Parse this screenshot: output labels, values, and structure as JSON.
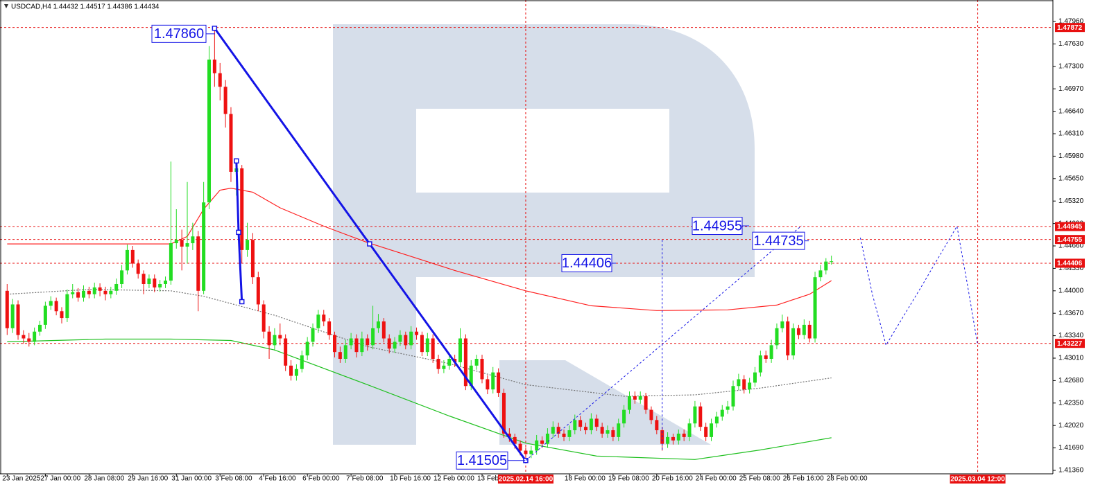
{
  "chart_data": {
    "type": "candlestick",
    "title": "USDCAD,H4 1.44432 1.44517 1.44386 1.44434",
    "up_color": "#22dd22",
    "down_color": "#ee1111",
    "categories": [
      "23 Jan 2025",
      null,
      null,
      null,
      null,
      null,
      null,
      "27 Jan 00:00",
      null,
      null,
      null,
      null,
      null,
      null,
      null,
      "28 Jan 08:00",
      null,
      null,
      null,
      null,
      null,
      null,
      null,
      "29 Jan 16:00",
      null,
      null,
      null,
      null,
      null,
      null,
      null,
      "31 Jan 00:00",
      null,
      null,
      null,
      null,
      null,
      null,
      null,
      "3 Feb 08:00",
      null,
      null,
      null,
      null,
      null,
      null,
      null,
      "4 Feb 16:00",
      null,
      null,
      null,
      null,
      null,
      null,
      null,
      "6 Feb 00:00",
      null,
      null,
      null,
      null,
      null,
      null,
      null,
      "7 Feb 08:00",
      null,
      null,
      null,
      null,
      null,
      null,
      null,
      "10 Feb 16:00",
      null,
      null,
      null,
      null,
      null,
      null,
      null,
      "12 Feb 00:00",
      null,
      null,
      null,
      null,
      null,
      null,
      null,
      "13 Feb 08:00",
      null,
      null,
      null,
      null,
      null,
      null,
      null,
      null,
      null,
      null,
      null,
      null,
      null,
      null,
      null,
      "18 Feb 00:00",
      null,
      null,
      null,
      null,
      null,
      null,
      null,
      "19 Feb 08:00",
      null,
      null,
      null,
      null,
      null,
      null,
      null,
      "20 Feb 16:00",
      null,
      null,
      null,
      null,
      null,
      null,
      null,
      "24 Feb 00:00",
      null,
      null,
      null,
      null,
      null,
      null,
      null,
      "25 Feb 08:00",
      null,
      null,
      null,
      null,
      null,
      null,
      null,
      "26 Feb 16:00",
      null,
      null,
      null,
      null,
      null,
      null,
      null,
      "28 Feb 00:00"
    ],
    "open": [
      1.44,
      1.4345,
      1.438,
      1.4335,
      1.433,
      1.4325,
      1.434,
      1.435,
      1.4378,
      1.4385,
      1.437,
      1.436,
      1.4395,
      1.4398,
      1.439,
      1.44,
      1.4395,
      1.4405,
      1.44,
      1.4395,
      1.44,
      1.441,
      1.443,
      1.446,
      1.444,
      1.4425,
      1.441,
      1.4418,
      1.4405,
      1.441,
      1.4415,
      1.447,
      1.4475,
      1.4465,
      1.447,
      1.448,
      1.44,
      1.453,
      1.474,
      1.472,
      1.47,
      1.466,
      1.4575,
      1.458,
      1.446,
      1.4475,
      1.442,
      1.438,
      1.434,
      1.432,
      1.4335,
      1.433,
      1.429,
      1.4275,
      1.4285,
      1.4305,
      1.4325,
      1.4345,
      1.4365,
      1.4355,
      1.4335,
      1.431,
      1.43,
      1.432,
      1.433,
      1.431,
      1.433,
      1.432,
      1.4345,
      1.4355,
      1.433,
      1.4315,
      1.4325,
      1.4335,
      1.432,
      1.434,
      1.4335,
      1.431,
      1.433,
      1.43,
      1.4285,
      1.429,
      1.43,
      1.4295,
      1.433,
      1.426,
      1.429,
      1.43,
      1.427,
      1.4255,
      1.428,
      1.425,
      1.419,
      1.4185,
      1.4175,
      1.4165,
      1.416,
      1.4165,
      1.418,
      1.4175,
      1.419,
      1.42,
      1.419,
      1.4185,
      1.4195,
      1.421,
      1.42,
      1.4195,
      1.4212,
      1.42,
      1.419,
      1.4195,
      1.4185,
      1.4205,
      1.4225,
      1.4245,
      1.424,
      1.4245,
      1.4225,
      1.421,
      1.4195,
      1.4175,
      1.4185,
      1.418,
      1.419,
      1.4185,
      1.4205,
      1.423,
      1.42,
      1.4185,
      1.4205,
      1.4215,
      1.4225,
      1.423,
      1.426,
      1.427,
      1.4255,
      1.4265,
      1.428,
      1.4305,
      1.43,
      1.432,
      1.4345,
      1.4355,
      1.4305,
      1.4345,
      1.4335,
      1.435,
      1.433,
      1.442,
      1.443,
      1.44432
    ],
    "high": [
      1.441,
      1.4388,
      1.4386,
      1.4342,
      1.4338,
      1.4346,
      1.4356,
      1.4384,
      1.4392,
      1.439,
      1.4376,
      1.4402,
      1.441,
      1.4404,
      1.4408,
      1.4406,
      1.4412,
      1.4411,
      1.4406,
      1.4406,
      1.4418,
      1.4438,
      1.4468,
      1.4466,
      1.4446,
      1.443,
      1.4424,
      1.4424,
      1.4416,
      1.4421,
      1.459,
      1.452,
      1.449,
      1.456,
      1.45,
      1.4488,
      1.456,
      1.476,
      1.4786,
      1.4735,
      1.471,
      1.467,
      1.459,
      1.4585,
      1.45,
      1.4485,
      1.4428,
      1.4386,
      1.4348,
      1.4345,
      1.4352,
      1.4336,
      1.4298,
      1.4292,
      1.4312,
      1.4332,
      1.4352,
      1.4372,
      1.4372,
      1.436,
      1.434,
      1.4318,
      1.4328,
      1.4338,
      1.4336,
      1.434,
      1.4336,
      1.4378,
      1.4366,
      1.436,
      1.4336,
      1.4332,
      1.4342,
      1.434,
      1.4348,
      1.4346,
      1.434,
      1.4338,
      1.4336,
      1.4306,
      1.4298,
      1.4308,
      1.4306,
      1.4345,
      1.4336,
      1.4298,
      1.4306,
      1.4306,
      1.4276,
      1.4288,
      1.4286,
      1.4256,
      1.4198,
      1.419,
      1.418,
      1.417,
      1.4172,
      1.4188,
      1.4186,
      1.4198,
      1.4208,
      1.4206,
      1.4196,
      1.4202,
      1.4218,
      1.4216,
      1.4206,
      1.422,
      1.4218,
      1.4206,
      1.4202,
      1.42,
      1.4212,
      1.4232,
      1.4252,
      1.4252,
      1.4252,
      1.425,
      1.423,
      1.4216,
      1.42,
      1.4192,
      1.419,
      1.4196,
      1.4196,
      1.4212,
      1.4238,
      1.4236,
      1.4206,
      1.4212,
      1.4222,
      1.4232,
      1.4238,
      1.4268,
      1.4278,
      1.4276,
      1.4272,
      1.4288,
      1.4312,
      1.4312,
      1.4328,
      1.4352,
      1.4365,
      1.4362,
      1.4352,
      1.435,
      1.4358,
      1.4356,
      1.4428,
      1.4438,
      1.4448,
      1.44517
    ],
    "low": [
      1.4335,
      1.4338,
      1.4328,
      1.4322,
      1.4318,
      1.432,
      1.4334,
      1.4344,
      1.4372,
      1.4364,
      1.4352,
      1.4354,
      1.4389,
      1.4384,
      1.4384,
      1.4389,
      1.4389,
      1.4392,
      1.4386,
      1.4389,
      1.4394,
      1.4404,
      1.4424,
      1.4434,
      1.4418,
      1.4395,
      1.4404,
      1.4398,
      1.4399,
      1.4404,
      1.4409,
      1.4462,
      1.443,
      1.444,
      1.446,
      1.437,
      1.4395,
      1.452,
      1.47,
      1.468,
      1.464,
      1.456,
      1.454,
      1.444,
      1.445,
      1.441,
      1.437,
      1.433,
      1.43,
      1.4312,
      1.432,
      1.4282,
      1.4268,
      1.4268,
      1.428,
      1.4298,
      1.4318,
      1.4338,
      1.4348,
      1.4328,
      1.4302,
      1.4294,
      1.4294,
      1.4314,
      1.4302,
      1.4304,
      1.4312,
      1.4314,
      1.4338,
      1.4324,
      1.4308,
      1.4309,
      1.4319,
      1.4314,
      1.4314,
      1.4328,
      1.4304,
      1.4304,
      1.4294,
      1.4278,
      1.4279,
      1.4284,
      1.4288,
      1.4289,
      1.4254,
      1.4254,
      1.4284,
      1.4264,
      1.4248,
      1.4249,
      1.4244,
      1.4184,
      1.4178,
      1.4168,
      1.4158,
      1.415,
      1.4154,
      1.4159,
      1.4169,
      1.4169,
      1.4184,
      1.4184,
      1.4179,
      1.4179,
      1.4189,
      1.4194,
      1.4189,
      1.4189,
      1.4194,
      1.4184,
      1.4184,
      1.4179,
      1.4179,
      1.4199,
      1.4219,
      1.4234,
      1.4234,
      1.4219,
      1.4204,
      1.4189,
      1.4165,
      1.4169,
      1.4174,
      1.4174,
      1.4179,
      1.4179,
      1.4199,
      1.4194,
      1.4179,
      1.4179,
      1.4199,
      1.4209,
      1.4219,
      1.4224,
      1.4254,
      1.4249,
      1.4249,
      1.4259,
      1.4274,
      1.4294,
      1.4294,
      1.4314,
      1.4339,
      1.4298,
      1.4299,
      1.4329,
      1.4329,
      1.4324,
      1.4324,
      1.4414,
      1.4424,
      1.44386
    ],
    "close": [
      1.4345,
      1.438,
      1.4335,
      1.433,
      1.4325,
      1.434,
      1.435,
      1.4378,
      1.4385,
      1.437,
      1.436,
      1.4395,
      1.4398,
      1.439,
      1.44,
      1.4395,
      1.4405,
      1.44,
      1.4395,
      1.44,
      1.441,
      1.443,
      1.446,
      1.444,
      1.4425,
      1.441,
      1.4418,
      1.4405,
      1.441,
      1.4415,
      1.447,
      1.4475,
      1.4465,
      1.447,
      1.448,
      1.44,
      1.453,
      1.474,
      1.472,
      1.47,
      1.466,
      1.4575,
      1.458,
      1.446,
      1.4475,
      1.442,
      1.438,
      1.434,
      1.432,
      1.4335,
      1.433,
      1.429,
      1.4275,
      1.4285,
      1.4305,
      1.4325,
      1.4345,
      1.4365,
      1.4355,
      1.4335,
      1.431,
      1.43,
      1.432,
      1.433,
      1.431,
      1.433,
      1.432,
      1.4345,
      1.4355,
      1.433,
      1.4315,
      1.4325,
      1.4335,
      1.432,
      1.434,
      1.4335,
      1.431,
      1.433,
      1.43,
      1.4285,
      1.429,
      1.43,
      1.4295,
      1.433,
      1.426,
      1.429,
      1.43,
      1.427,
      1.4255,
      1.428,
      1.425,
      1.419,
      1.4185,
      1.4175,
      1.4165,
      1.416,
      1.4165,
      1.418,
      1.4175,
      1.419,
      1.42,
      1.419,
      1.4185,
      1.4195,
      1.421,
      1.42,
      1.4195,
      1.4212,
      1.42,
      1.419,
      1.4195,
      1.4185,
      1.4205,
      1.4225,
      1.4245,
      1.424,
      1.4245,
      1.4225,
      1.421,
      1.4195,
      1.4175,
      1.4185,
      1.418,
      1.419,
      1.4185,
      1.4205,
      1.423,
      1.42,
      1.4185,
      1.4205,
      1.4215,
      1.4225,
      1.423,
      1.426,
      1.427,
      1.4255,
      1.4265,
      1.428,
      1.4305,
      1.43,
      1.432,
      1.4345,
      1.4355,
      1.4305,
      1.4345,
      1.4335,
      1.435,
      1.433,
      1.442,
      1.443,
      1.4443,
      1.44434
    ],
    "ylim": [
      1.41309,
      1.48276
    ],
    "yticks": [
      {
        "value": 1.4136,
        "label": "1.41360"
      },
      {
        "value": 1.4169,
        "label": "1.41690"
      },
      {
        "value": 1.4202,
        "label": "1.42020"
      },
      {
        "value": 1.4235,
        "label": "1.42350"
      },
      {
        "value": 1.4268,
        "label": "1.42680"
      },
      {
        "value": 1.4301,
        "label": "1.43010"
      },
      {
        "value": 1.4334,
        "label": "1.43340"
      },
      {
        "value": 1.4367,
        "label": "1.43670"
      },
      {
        "value": 1.44,
        "label": "1.44000"
      },
      {
        "value": 1.4433,
        "label": "1.44330"
      },
      {
        "value": 1.4466,
        "label": "1.44660"
      },
      {
        "value": 1.4499,
        "label": "1.44990"
      },
      {
        "value": 1.4532,
        "label": "1.45320"
      },
      {
        "value": 1.4565,
        "label": "1.45650"
      },
      {
        "value": 1.4598,
        "label": "1.45980"
      },
      {
        "value": 1.4631,
        "label": "1.46310"
      },
      {
        "value": 1.4664,
        "label": "1.46640"
      },
      {
        "value": 1.4697,
        "label": "1.46970"
      },
      {
        "value": 1.473,
        "label": "1.47300"
      },
      {
        "value": 1.4763,
        "label": "1.47630"
      },
      {
        "value": 1.4796,
        "label": "1.47960"
      }
    ],
    "series": [
      {
        "color": "#ff2020",
        "style": "solid",
        "x": [
          0,
          30,
          33,
          36,
          39,
          41,
          45,
          50,
          58,
          66,
          75,
          82,
          95,
          107,
          119,
          132,
          141,
          147,
          151
        ],
        "values": [
          1.4469,
          1.4469,
          1.448,
          1.452,
          1.4548,
          1.4551,
          1.4545,
          1.4522,
          1.4495,
          1.4471,
          1.4448,
          1.443,
          1.44,
          1.4378,
          1.4371,
          1.4372,
          1.4379,
          1.4395,
          1.4415
        ]
      },
      {
        "color": "#707070",
        "style": "dotted",
        "x": [
          0,
          15,
          30,
          36,
          49,
          66,
          81,
          95,
          113,
          126,
          138,
          151
        ],
        "values": [
          1.4395,
          1.4402,
          1.44,
          1.4392,
          1.4364,
          1.4318,
          1.4293,
          1.4262,
          1.4245,
          1.4247,
          1.4257,
          1.4272
        ]
      },
      {
        "color": "#20c020",
        "style": "solid",
        "x": [
          0,
          18,
          30,
          41,
          49,
          66,
          81,
          95,
          108,
          126,
          138,
          151
        ],
        "values": [
          1.4325,
          1.4329,
          1.4329,
          1.4327,
          1.4313,
          1.4262,
          1.4216,
          1.4176,
          1.4157,
          1.4152,
          1.4166,
          1.4184
        ]
      }
    ],
    "levels": [
      1.47872,
      1.44945,
      1.44755,
      1.44406,
      1.43227
    ],
    "level_color": "#e81010",
    "wave_color": "#1414e6",
    "waves": [
      {
        "x": [
          38,
          66.4,
          95
        ],
        "values": [
          1.4786,
          1.4469,
          1.41505
        ]
      },
      {
        "x": [
          42,
          42.4,
          43
        ],
        "values": [
          1.4591,
          1.4486,
          1.4384
        ]
      }
    ],
    "projections": [
      {
        "x": [
          95,
          145.5
        ],
        "values": [
          1.41505,
          1.44955
        ]
      },
      {
        "x": [
          120,
          120
        ],
        "values": [
          1.4475,
          1.4166
        ]
      },
      {
        "x": [
          156.3,
          158.5,
          161,
          167.4,
          174,
          175.9,
          177.8
        ],
        "values": [
          1.4478,
          1.4395,
          1.432,
          1.4405,
          1.4495,
          1.441,
          1.432
        ]
      }
    ],
    "annotations": [
      {
        "value": 1.4786,
        "label": "1.47860"
      },
      1.41505,
      1.44406,
      1.44955,
      1.44735
    ],
    "time_markers": [
      {
        "x": 95,
        "label": "2025.02.14 16:00"
      },
      {
        "x": 177.8,
        "label": "2025.03.04 12:00"
      }
    ]
  }
}
